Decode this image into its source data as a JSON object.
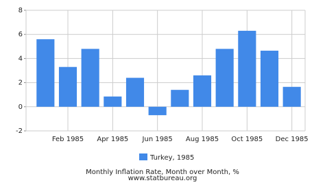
{
  "chart_data": {
    "type": "bar",
    "title": "Monthly Inflation Rate, Month over Month, %",
    "subtitle": "www.statbureau.org",
    "categories": [
      null,
      "Feb 1985",
      null,
      "Apr 1985",
      null,
      "Jun 1985",
      null,
      "Aug 1985",
      null,
      "Oct 1985",
      null,
      "Dec 1985"
    ],
    "series": [
      {
        "name": "Turkey, 1985",
        "color": "#4189e8",
        "values": [
          5.6,
          3.3,
          4.8,
          0.85,
          2.4,
          -0.7,
          1.4,
          2.6,
          4.8,
          6.3,
          4.65,
          1.65
        ]
      }
    ],
    "ylim": [
      -2,
      8
    ],
    "yticks": [
      -2,
      0,
      2,
      4,
      6,
      8
    ],
    "grid": true
  }
}
